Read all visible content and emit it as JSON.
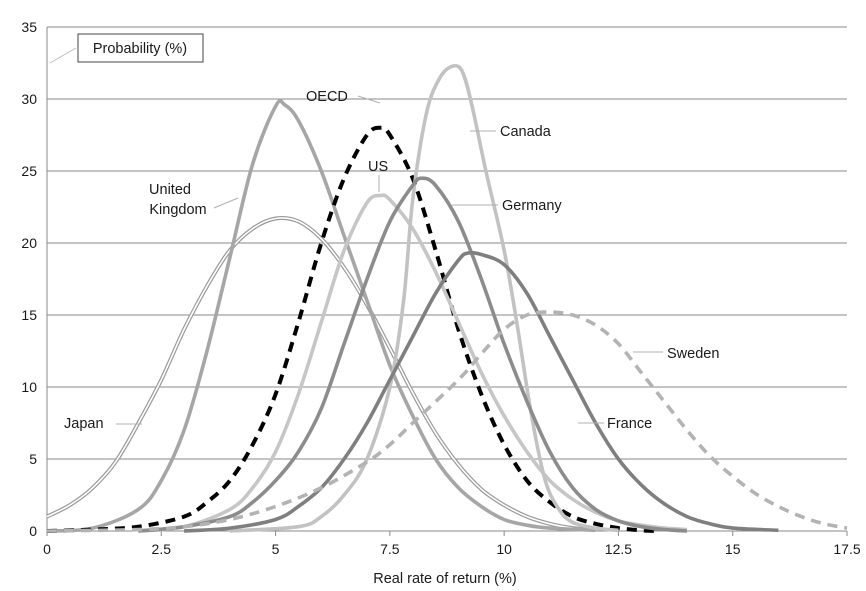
{
  "chart_data": {
    "type": "line",
    "title": "",
    "xlabel": "Real rate of return (%)",
    "ylabel": "Probability (%)",
    "xlim": [
      0,
      17.5
    ],
    "ylim": [
      0,
      35
    ],
    "x_ticks": [
      "0",
      "2.5",
      "5",
      "7.5",
      "10",
      "12.5",
      "15",
      "17.5"
    ],
    "y_ticks": [
      "0",
      "5",
      "10",
      "15",
      "20",
      "25",
      "30",
      "35"
    ],
    "grid": "horizontal",
    "legend": "none (series labelled directly on the chart)",
    "series": [
      {
        "name": "Japan",
        "color": "#9a9a9a",
        "style": "double",
        "points": [
          [
            0,
            1.0
          ],
          [
            0.5,
            1.8
          ],
          [
            1.0,
            3.0
          ],
          [
            1.5,
            4.8
          ],
          [
            2.0,
            7.5
          ],
          [
            2.5,
            10.5
          ],
          [
            3.0,
            14.0
          ],
          [
            3.5,
            17.0
          ],
          [
            4.0,
            19.5
          ],
          [
            4.5,
            21.0
          ],
          [
            5.0,
            21.7
          ],
          [
            5.5,
            21.5
          ],
          [
            6.0,
            20.3
          ],
          [
            6.5,
            18.3
          ],
          [
            7.0,
            15.7
          ],
          [
            7.5,
            12.7
          ],
          [
            8.0,
            9.6
          ],
          [
            8.5,
            6.8
          ],
          [
            9.0,
            4.6
          ],
          [
            9.5,
            2.9
          ],
          [
            10.0,
            1.8
          ],
          [
            10.5,
            1.0
          ],
          [
            11.0,
            0.5
          ],
          [
            11.5,
            0.2
          ],
          [
            12.0,
            0.1
          ]
        ]
      },
      {
        "name": "United Kingdom",
        "color": "#a6a6a6",
        "style": "solid",
        "points": [
          [
            0,
            0
          ],
          [
            1.0,
            0.2
          ],
          [
            2.0,
            1.5
          ],
          [
            2.5,
            3.5
          ],
          [
            3.0,
            7.0
          ],
          [
            3.5,
            12.5
          ],
          [
            4.0,
            19.0
          ],
          [
            4.5,
            25.5
          ],
          [
            5.0,
            29.5
          ],
          [
            5.2,
            29.6
          ],
          [
            5.5,
            28.5
          ],
          [
            6.0,
            25.0
          ],
          [
            6.5,
            20.5
          ],
          [
            7.0,
            16.0
          ],
          [
            7.5,
            11.5
          ],
          [
            8.0,
            8.0
          ],
          [
            8.5,
            5.0
          ],
          [
            9.0,
            3.0
          ],
          [
            9.5,
            1.7
          ],
          [
            10.0,
            0.8
          ],
          [
            10.5,
            0.4
          ],
          [
            11.0,
            0.2
          ],
          [
            12.0,
            0.05
          ]
        ]
      },
      {
        "name": "OECD",
        "color": "#000000",
        "style": "dashed",
        "points": [
          [
            0,
            0
          ],
          [
            1.0,
            0.1
          ],
          [
            2.0,
            0.3
          ],
          [
            3.0,
            1.0
          ],
          [
            3.5,
            2.0
          ],
          [
            4.0,
            3.5
          ],
          [
            4.5,
            6.0
          ],
          [
            5.0,
            9.5
          ],
          [
            5.5,
            14.5
          ],
          [
            6.0,
            20.0
          ],
          [
            6.5,
            24.5
          ],
          [
            7.0,
            27.5
          ],
          [
            7.3,
            28.0
          ],
          [
            7.5,
            27.5
          ],
          [
            8.0,
            24.5
          ],
          [
            8.5,
            19.5
          ],
          [
            9.0,
            14.0
          ],
          [
            9.5,
            9.5
          ],
          [
            10.0,
            6.0
          ],
          [
            10.5,
            3.5
          ],
          [
            11.0,
            2.0
          ],
          [
            11.5,
            1.0
          ],
          [
            12.0,
            0.5
          ],
          [
            12.5,
            0.2
          ],
          [
            13.0,
            0.05
          ],
          [
            13.3,
            0
          ]
        ]
      },
      {
        "name": "US",
        "color": "#c6c6c6",
        "style": "solid",
        "points": [
          [
            2.0,
            0
          ],
          [
            3.0,
            0.3
          ],
          [
            4.0,
            1.5
          ],
          [
            4.5,
            3.0
          ],
          [
            5.0,
            5.5
          ],
          [
            5.5,
            9.5
          ],
          [
            6.0,
            14.5
          ],
          [
            6.5,
            19.5
          ],
          [
            7.0,
            22.8
          ],
          [
            7.3,
            23.3
          ],
          [
            7.5,
            23.0
          ],
          [
            8.0,
            21.0
          ],
          [
            8.5,
            18.0
          ],
          [
            9.0,
            14.5
          ],
          [
            9.5,
            11.0
          ],
          [
            10.0,
            8.0
          ],
          [
            10.5,
            5.5
          ],
          [
            11.0,
            3.5
          ],
          [
            11.5,
            2.2
          ],
          [
            12.0,
            1.3
          ],
          [
            12.5,
            0.7
          ],
          [
            13.0,
            0.4
          ],
          [
            13.5,
            0.2
          ],
          [
            14.0,
            0.1
          ]
        ]
      },
      {
        "name": "Canada",
        "color": "#c2c2c2",
        "style": "solid",
        "points": [
          [
            4.0,
            0
          ],
          [
            5.5,
            0.3
          ],
          [
            6.0,
            1.0
          ],
          [
            6.5,
            2.5
          ],
          [
            7.0,
            5.0
          ],
          [
            7.5,
            10.0
          ],
          [
            7.8,
            16.0
          ],
          [
            8.0,
            23.0
          ],
          [
            8.3,
            29.0
          ],
          [
            8.6,
            31.5
          ],
          [
            8.9,
            32.3
          ],
          [
            9.1,
            31.8
          ],
          [
            9.3,
            29.5
          ],
          [
            9.6,
            25.0
          ],
          [
            10.0,
            19.5
          ],
          [
            10.3,
            14.0
          ],
          [
            10.6,
            8.0
          ],
          [
            10.9,
            3.5
          ],
          [
            11.2,
            1.5
          ],
          [
            11.5,
            0.6
          ],
          [
            12.0,
            0.2
          ],
          [
            12.5,
            0.05
          ]
        ]
      },
      {
        "name": "Germany",
        "color": "#8c8c8c",
        "style": "solid",
        "points": [
          [
            2.0,
            0
          ],
          [
            3.0,
            0.3
          ],
          [
            4.0,
            1.0
          ],
          [
            4.5,
            2.0
          ],
          [
            5.0,
            3.5
          ],
          [
            5.5,
            5.5
          ],
          [
            6.0,
            8.5
          ],
          [
            6.5,
            13.0
          ],
          [
            7.0,
            17.5
          ],
          [
            7.5,
            21.5
          ],
          [
            8.0,
            24.0
          ],
          [
            8.2,
            24.5
          ],
          [
            8.5,
            24.0
          ],
          [
            9.0,
            21.5
          ],
          [
            9.5,
            17.5
          ],
          [
            10.0,
            13.0
          ],
          [
            10.5,
            9.0
          ],
          [
            11.0,
            5.5
          ],
          [
            11.5,
            3.0
          ],
          [
            12.0,
            1.5
          ],
          [
            12.5,
            0.7
          ],
          [
            13.0,
            0.3
          ],
          [
            13.5,
            0.1
          ],
          [
            14.0,
            0
          ]
        ]
      },
      {
        "name": "France",
        "color": "#7f7f7f",
        "style": "solid",
        "points": [
          [
            3.0,
            0
          ],
          [
            4.0,
            0.2
          ],
          [
            5.0,
            0.8
          ],
          [
            5.5,
            1.7
          ],
          [
            6.0,
            3.0
          ],
          [
            6.5,
            5.0
          ],
          [
            7.0,
            7.5
          ],
          [
            7.5,
            10.5
          ],
          [
            8.0,
            13.5
          ],
          [
            8.5,
            16.5
          ],
          [
            9.0,
            18.8
          ],
          [
            9.2,
            19.3
          ],
          [
            9.5,
            19.2
          ],
          [
            10.0,
            18.5
          ],
          [
            10.5,
            16.5
          ],
          [
            11.0,
            13.5
          ],
          [
            11.5,
            10.5
          ],
          [
            12.0,
            7.5
          ],
          [
            12.5,
            5.0
          ],
          [
            13.0,
            3.2
          ],
          [
            13.5,
            1.9
          ],
          [
            14.0,
            1.0
          ],
          [
            14.5,
            0.5
          ],
          [
            15.0,
            0.2
          ],
          [
            16.0,
            0.05
          ]
        ]
      },
      {
        "name": "Sweden",
        "color": "#b3b3b3",
        "style": "dashed",
        "points": [
          [
            0,
            0
          ],
          [
            2.0,
            0.1
          ],
          [
            3.0,
            0.3
          ],
          [
            4.0,
            0.8
          ],
          [
            5.0,
            1.7
          ],
          [
            6.0,
            3.0
          ],
          [
            7.0,
            4.8
          ],
          [
            7.5,
            6.0
          ],
          [
            8.0,
            7.5
          ],
          [
            9.0,
            10.5
          ],
          [
            9.5,
            12.3
          ],
          [
            10.0,
            14.0
          ],
          [
            10.5,
            15.0
          ],
          [
            11.0,
            15.2
          ],
          [
            11.5,
            15.0
          ],
          [
            12.0,
            14.3
          ],
          [
            12.5,
            13.0
          ],
          [
            13.0,
            11.0
          ],
          [
            13.5,
            9.0
          ],
          [
            14.0,
            7.0
          ],
          [
            14.5,
            5.2
          ],
          [
            15.0,
            3.8
          ],
          [
            15.5,
            2.6
          ],
          [
            16.0,
            1.7
          ],
          [
            16.5,
            1.0
          ],
          [
            17.0,
            0.5
          ],
          [
            17.5,
            0.2
          ]
        ]
      }
    ],
    "annotations": [
      {
        "text": "Japan",
        "series": "Japan"
      },
      {
        "text": "United",
        "series": "United Kingdom"
      },
      {
        "text": "Kingdom",
        "series": "United Kingdom"
      },
      {
        "text": "OECD",
        "series": "OECD"
      },
      {
        "text": "US",
        "series": "US"
      },
      {
        "text": "Canada",
        "series": "Canada"
      },
      {
        "text": "Germany",
        "series": "Germany"
      },
      {
        "text": "France",
        "series": "France"
      },
      {
        "text": "Sweden",
        "series": "Sweden"
      }
    ]
  }
}
